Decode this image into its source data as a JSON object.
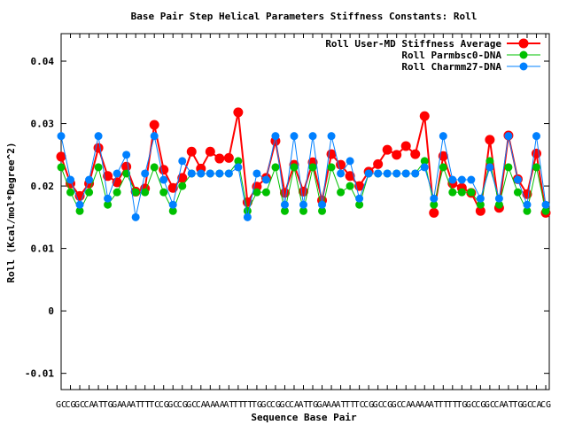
{
  "chart_data": {
    "type": "line",
    "title": "Base Pair Step Helical Parameters Stiffness Constants: Roll",
    "x_label": "Sequence Base Pair",
    "y_label": "Roll (Kcal/mol*Degree^2)",
    "categories": [
      "GC",
      "CG",
      "GC",
      "CA",
      "AT",
      "TG",
      "GA",
      "AA",
      "AT",
      "TT",
      "TC",
      "CG",
      "GC",
      "CG",
      "GC",
      "CA",
      "AA",
      "AA",
      "AT",
      "TT",
      "TT",
      "TG",
      "GC",
      "CG",
      "GC",
      "CA",
      "AT",
      "TG",
      "GA",
      "AA",
      "AT",
      "TT",
      "TC",
      "CG",
      "GC",
      "CG",
      "GC",
      "CA",
      "AA",
      "AA",
      "AT",
      "TT",
      "TT",
      "TG",
      "GC",
      "CG",
      "GC",
      "CA",
      "AT",
      "TG",
      "GC",
      "CA",
      "CG"
    ],
    "ylim": [
      -0.0126,
      0.0444
    ],
    "yticks": [
      -0.01,
      0,
      0.01,
      0.02,
      0.03,
      0.04
    ],
    "legend": "top-right",
    "series": [
      {
        "name": "Roll User-MD Stiffness Average",
        "color": "#ff0000",
        "values": [
          0.0247,
          0.0204,
          0.0184,
          0.0204,
          0.0261,
          0.0216,
          0.0206,
          0.0231,
          0.0191,
          0.0196,
          0.0298,
          0.0226,
          0.0197,
          0.0213,
          0.0255,
          0.0228,
          0.0255,
          0.0244,
          0.0245,
          0.0318,
          0.0174,
          0.0199,
          0.0213,
          0.0272,
          0.0189,
          0.0234,
          0.0191,
          0.0238,
          0.0177,
          0.0251,
          0.0234,
          0.0216,
          0.02,
          0.0223,
          0.0235,
          0.0258,
          0.025,
          0.0264,
          0.0251,
          0.0312,
          0.0157,
          0.0248,
          0.0204,
          0.0197,
          0.0189,
          0.016,
          0.0274,
          0.0165,
          0.0281,
          0.0211,
          0.0187,
          0.0252,
          0.0157
        ]
      },
      {
        "name": "Roll Parmbsc0-DNA",
        "color": "#00c000",
        "values": [
          0.023,
          0.019,
          0.016,
          0.019,
          0.023,
          0.017,
          0.019,
          0.022,
          0.019,
          0.019,
          0.023,
          0.019,
          0.016,
          0.02,
          0.022,
          0.022,
          0.022,
          0.022,
          0.022,
          0.024,
          0.016,
          0.019,
          0.019,
          0.023,
          0.016,
          0.023,
          0.016,
          0.023,
          0.016,
          0.023,
          0.019,
          0.02,
          0.017,
          0.022,
          0.022,
          0.022,
          0.022,
          0.022,
          0.022,
          0.024,
          0.017,
          0.023,
          0.019,
          0.019,
          0.019,
          0.017,
          0.024,
          0.017,
          0.023,
          0.019,
          0.016,
          0.023,
          0.016
        ]
      },
      {
        "name": "Roll Charmm27-DNA",
        "color": "#0080ff",
        "values": [
          0.028,
          0.021,
          0.017,
          0.021,
          0.028,
          0.018,
          0.022,
          0.025,
          0.015,
          0.022,
          0.028,
          0.021,
          0.017,
          0.024,
          0.022,
          0.022,
          0.022,
          0.022,
          0.022,
          0.023,
          0.015,
          0.022,
          0.021,
          0.028,
          0.017,
          0.028,
          0.017,
          0.028,
          0.017,
          0.028,
          0.022,
          0.024,
          0.018,
          0.022,
          0.022,
          0.022,
          0.022,
          0.022,
          0.022,
          0.023,
          0.018,
          0.028,
          0.021,
          0.021,
          0.021,
          0.018,
          0.023,
          0.018,
          0.028,
          0.021,
          0.017,
          0.028,
          0.017
        ]
      }
    ]
  }
}
